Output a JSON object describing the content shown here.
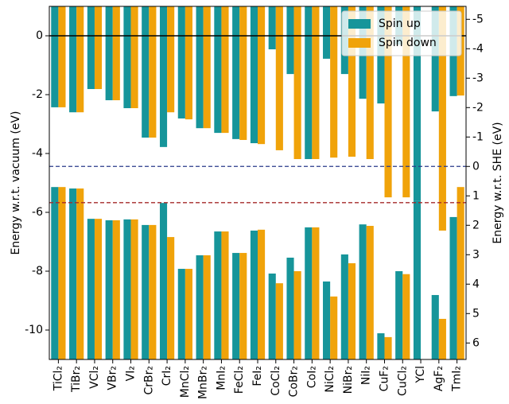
{
  "chart_data": {
    "type": "floating_bar",
    "categories": [
      "TiCl₂",
      "TiBr₂",
      "VCl₂",
      "VBr₂",
      "VI₂",
      "CrBr₂",
      "CrI₂",
      "MnCl₂",
      "MnBr₂",
      "MnI₂",
      "FeCl₂",
      "FeI₂",
      "CoCl₂",
      "CoBr₂",
      "CoI₂",
      "NiCl₂",
      "NiBr₂",
      "NiI₂",
      "CuF₂",
      "CuCl₂",
      "YCl",
      "AgF₂",
      "TmI₂"
    ],
    "series": [
      {
        "name": "Spin up",
        "color": "#16959a",
        "cbm": [
          -2.43,
          -2.6,
          -1.81,
          -2.19,
          -2.46,
          -3.46,
          -3.78,
          -2.81,
          -3.14,
          -3.3,
          -3.51,
          -3.65,
          -0.46,
          -1.3,
          -4.19,
          -0.78,
          -1.3,
          -2.14,
          -2.3,
          -0.3,
          -5.6,
          -2.57,
          -2.05
        ],
        "vbm": [
          -5.14,
          -5.19,
          -6.22,
          -6.27,
          -6.24,
          -6.43,
          -5.68,
          -7.92,
          -7.46,
          -6.65,
          -7.38,
          -6.62,
          -8.08,
          -7.54,
          -6.51,
          -8.35,
          -7.43,
          -6.41,
          -10.11,
          -8.0,
          -5.6,
          -8.81,
          -6.16
        ]
      },
      {
        "name": "Spin down",
        "color": "#f0a30a",
        "cbm": [
          -2.43,
          -2.6,
          -1.81,
          -2.19,
          -2.46,
          -3.46,
          -2.6,
          -2.84,
          -3.14,
          -3.3,
          -3.54,
          -3.68,
          -3.89,
          -4.19,
          -4.19,
          -4.14,
          -4.11,
          -4.19,
          -5.49,
          -5.49,
          null,
          -6.62,
          -2.03
        ],
        "vbm": [
          -5.14,
          -5.19,
          -6.22,
          -6.27,
          -6.24,
          -6.43,
          -6.84,
          -7.92,
          -7.46,
          -6.65,
          -7.38,
          -6.59,
          -8.41,
          -8.0,
          -6.51,
          -8.86,
          -7.73,
          -6.46,
          -10.24,
          -8.1,
          null,
          -9.62,
          -5.14
        ]
      }
    ],
    "ylabel": "Energy w.r.t. vacuum (eV)",
    "y2label": "Energy w.r.t. SHE (eV)",
    "ylim": [
      -11,
      1
    ],
    "yticks": [
      -10,
      -8,
      -6,
      -4,
      -2,
      0
    ],
    "y2lim": [
      6.56,
      -5.44
    ],
    "y2ticks": [
      6,
      5,
      4,
      3,
      2,
      1,
      0,
      -1,
      -2,
      -3,
      -4,
      -5
    ],
    "reference_lines": [
      {
        "value": 0,
        "color": "#000000",
        "style": "solid"
      },
      {
        "value": -4.44,
        "color": "#2a3a8a",
        "style": "dashed"
      },
      {
        "value": -5.67,
        "color": "#a52a2a",
        "style": "dashed"
      }
    ],
    "legend": "upper right"
  }
}
